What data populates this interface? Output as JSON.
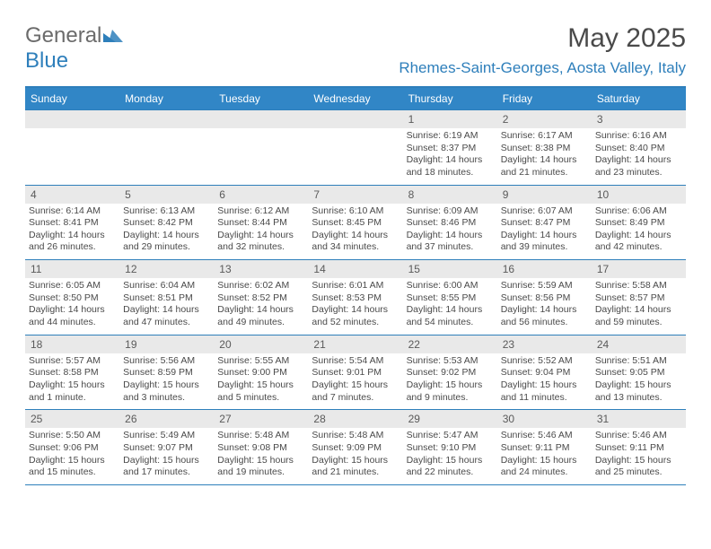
{
  "logo": {
    "text_gray": "General",
    "text_blue": "Blue",
    "mark_color": "#2e7fbb"
  },
  "title": "May 2025",
  "location": "Rhemes-Saint-Georges, Aosta Valley, Italy",
  "colors": {
    "header_bg": "#3186c6",
    "header_text": "#ffffff",
    "rule": "#2e7fbb",
    "daynum_bg": "#e9e9e9",
    "text": "#4a4a4a"
  },
  "days_of_week": [
    "Sunday",
    "Monday",
    "Tuesday",
    "Wednesday",
    "Thursday",
    "Friday",
    "Saturday"
  ],
  "weeks": [
    [
      {
        "num": "",
        "sunrise": "",
        "sunset": "",
        "daylight": ""
      },
      {
        "num": "",
        "sunrise": "",
        "sunset": "",
        "daylight": ""
      },
      {
        "num": "",
        "sunrise": "",
        "sunset": "",
        "daylight": ""
      },
      {
        "num": "",
        "sunrise": "",
        "sunset": "",
        "daylight": ""
      },
      {
        "num": "1",
        "sunrise": "Sunrise: 6:19 AM",
        "sunset": "Sunset: 8:37 PM",
        "daylight": "Daylight: 14 hours and 18 minutes."
      },
      {
        "num": "2",
        "sunrise": "Sunrise: 6:17 AM",
        "sunset": "Sunset: 8:38 PM",
        "daylight": "Daylight: 14 hours and 21 minutes."
      },
      {
        "num": "3",
        "sunrise": "Sunrise: 6:16 AM",
        "sunset": "Sunset: 8:40 PM",
        "daylight": "Daylight: 14 hours and 23 minutes."
      }
    ],
    [
      {
        "num": "4",
        "sunrise": "Sunrise: 6:14 AM",
        "sunset": "Sunset: 8:41 PM",
        "daylight": "Daylight: 14 hours and 26 minutes."
      },
      {
        "num": "5",
        "sunrise": "Sunrise: 6:13 AM",
        "sunset": "Sunset: 8:42 PM",
        "daylight": "Daylight: 14 hours and 29 minutes."
      },
      {
        "num": "6",
        "sunrise": "Sunrise: 6:12 AM",
        "sunset": "Sunset: 8:44 PM",
        "daylight": "Daylight: 14 hours and 32 minutes."
      },
      {
        "num": "7",
        "sunrise": "Sunrise: 6:10 AM",
        "sunset": "Sunset: 8:45 PM",
        "daylight": "Daylight: 14 hours and 34 minutes."
      },
      {
        "num": "8",
        "sunrise": "Sunrise: 6:09 AM",
        "sunset": "Sunset: 8:46 PM",
        "daylight": "Daylight: 14 hours and 37 minutes."
      },
      {
        "num": "9",
        "sunrise": "Sunrise: 6:07 AM",
        "sunset": "Sunset: 8:47 PM",
        "daylight": "Daylight: 14 hours and 39 minutes."
      },
      {
        "num": "10",
        "sunrise": "Sunrise: 6:06 AM",
        "sunset": "Sunset: 8:49 PM",
        "daylight": "Daylight: 14 hours and 42 minutes."
      }
    ],
    [
      {
        "num": "11",
        "sunrise": "Sunrise: 6:05 AM",
        "sunset": "Sunset: 8:50 PM",
        "daylight": "Daylight: 14 hours and 44 minutes."
      },
      {
        "num": "12",
        "sunrise": "Sunrise: 6:04 AM",
        "sunset": "Sunset: 8:51 PM",
        "daylight": "Daylight: 14 hours and 47 minutes."
      },
      {
        "num": "13",
        "sunrise": "Sunrise: 6:02 AM",
        "sunset": "Sunset: 8:52 PM",
        "daylight": "Daylight: 14 hours and 49 minutes."
      },
      {
        "num": "14",
        "sunrise": "Sunrise: 6:01 AM",
        "sunset": "Sunset: 8:53 PM",
        "daylight": "Daylight: 14 hours and 52 minutes."
      },
      {
        "num": "15",
        "sunrise": "Sunrise: 6:00 AM",
        "sunset": "Sunset: 8:55 PM",
        "daylight": "Daylight: 14 hours and 54 minutes."
      },
      {
        "num": "16",
        "sunrise": "Sunrise: 5:59 AM",
        "sunset": "Sunset: 8:56 PM",
        "daylight": "Daylight: 14 hours and 56 minutes."
      },
      {
        "num": "17",
        "sunrise": "Sunrise: 5:58 AM",
        "sunset": "Sunset: 8:57 PM",
        "daylight": "Daylight: 14 hours and 59 minutes."
      }
    ],
    [
      {
        "num": "18",
        "sunrise": "Sunrise: 5:57 AM",
        "sunset": "Sunset: 8:58 PM",
        "daylight": "Daylight: 15 hours and 1 minute."
      },
      {
        "num": "19",
        "sunrise": "Sunrise: 5:56 AM",
        "sunset": "Sunset: 8:59 PM",
        "daylight": "Daylight: 15 hours and 3 minutes."
      },
      {
        "num": "20",
        "sunrise": "Sunrise: 5:55 AM",
        "sunset": "Sunset: 9:00 PM",
        "daylight": "Daylight: 15 hours and 5 minutes."
      },
      {
        "num": "21",
        "sunrise": "Sunrise: 5:54 AM",
        "sunset": "Sunset: 9:01 PM",
        "daylight": "Daylight: 15 hours and 7 minutes."
      },
      {
        "num": "22",
        "sunrise": "Sunrise: 5:53 AM",
        "sunset": "Sunset: 9:02 PM",
        "daylight": "Daylight: 15 hours and 9 minutes."
      },
      {
        "num": "23",
        "sunrise": "Sunrise: 5:52 AM",
        "sunset": "Sunset: 9:04 PM",
        "daylight": "Daylight: 15 hours and 11 minutes."
      },
      {
        "num": "24",
        "sunrise": "Sunrise: 5:51 AM",
        "sunset": "Sunset: 9:05 PM",
        "daylight": "Daylight: 15 hours and 13 minutes."
      }
    ],
    [
      {
        "num": "25",
        "sunrise": "Sunrise: 5:50 AM",
        "sunset": "Sunset: 9:06 PM",
        "daylight": "Daylight: 15 hours and 15 minutes."
      },
      {
        "num": "26",
        "sunrise": "Sunrise: 5:49 AM",
        "sunset": "Sunset: 9:07 PM",
        "daylight": "Daylight: 15 hours and 17 minutes."
      },
      {
        "num": "27",
        "sunrise": "Sunrise: 5:48 AM",
        "sunset": "Sunset: 9:08 PM",
        "daylight": "Daylight: 15 hours and 19 minutes."
      },
      {
        "num": "28",
        "sunrise": "Sunrise: 5:48 AM",
        "sunset": "Sunset: 9:09 PM",
        "daylight": "Daylight: 15 hours and 21 minutes."
      },
      {
        "num": "29",
        "sunrise": "Sunrise: 5:47 AM",
        "sunset": "Sunset: 9:10 PM",
        "daylight": "Daylight: 15 hours and 22 minutes."
      },
      {
        "num": "30",
        "sunrise": "Sunrise: 5:46 AM",
        "sunset": "Sunset: 9:11 PM",
        "daylight": "Daylight: 15 hours and 24 minutes."
      },
      {
        "num": "31",
        "sunrise": "Sunrise: 5:46 AM",
        "sunset": "Sunset: 9:11 PM",
        "daylight": "Daylight: 15 hours and 25 minutes."
      }
    ]
  ]
}
